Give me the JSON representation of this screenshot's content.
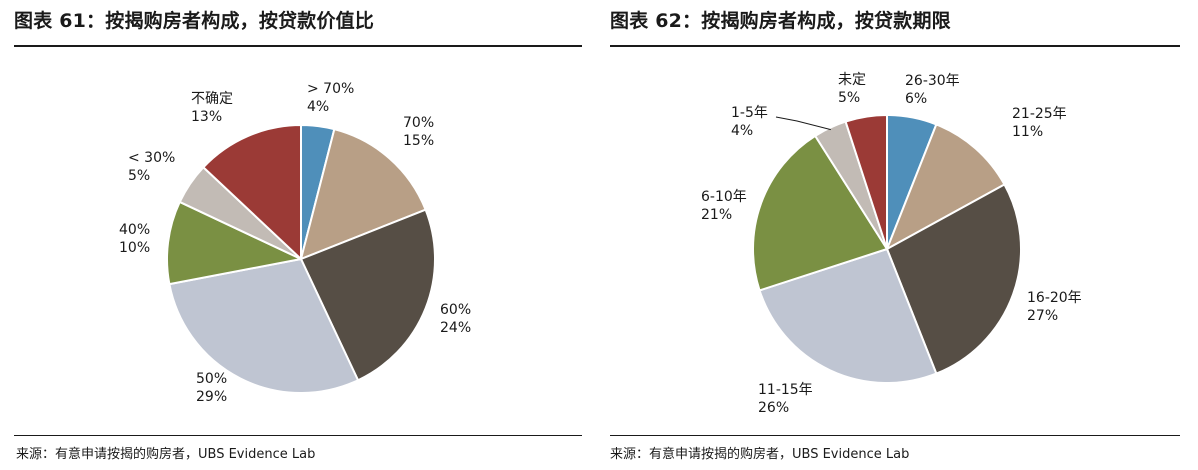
{
  "charts": [
    {
      "title": "图表 61：按揭购房者构成，按贷款价值比",
      "source": "来源：有意申请按揭的购房者，UBS Evidence Lab"
    },
    {
      "title": "图表 62：按揭购房者构成，按贷款期限",
      "source": "来源：有意申请按揭的购房者，UBS Evidence Lab"
    }
  ],
  "chart_data": [
    {
      "type": "pie",
      "title": "图表 61：按揭购房者构成，按贷款价值比",
      "slices": [
        {
          "label": "> 70%",
          "value": 4,
          "value_label": "4%",
          "color": "#4f8fba"
        },
        {
          "label": "70%",
          "value": 15,
          "value_label": "15%",
          "color": "#b89f86"
        },
        {
          "label": "60%",
          "value": 24,
          "value_label": "24%",
          "color": "#564e45"
        },
        {
          "label": "50%",
          "value": 29,
          "value_label": "29%",
          "color": "#bfc5d2"
        },
        {
          "label": "40%",
          "value": 10,
          "value_label": "10%",
          "color": "#7a9043"
        },
        {
          "label": "< 30%",
          "value": 5,
          "value_label": "5%",
          "color": "#c2bbb5"
        },
        {
          "label": "不确定",
          "value": 13,
          "value_label": "13%",
          "color": "#9b3a36"
        }
      ]
    },
    {
      "type": "pie",
      "title": "图表 62：按揭购房者构成，按贷款期限",
      "slices": [
        {
          "label": "26-30年",
          "value": 6,
          "value_label": "6%",
          "color": "#4f8fba"
        },
        {
          "label": "21-25年",
          "value": 11,
          "value_label": "11%",
          "color": "#b89f86"
        },
        {
          "label": "16-20年",
          "value": 27,
          "value_label": "27%",
          "color": "#564e45"
        },
        {
          "label": "11-15年",
          "value": 26,
          "value_label": "26%",
          "color": "#bfc5d2"
        },
        {
          "label": "6-10年",
          "value": 21,
          "value_label": "21%",
          "color": "#7a9043"
        },
        {
          "label": "1-5年",
          "value": 4,
          "value_label": "4%",
          "color": "#c2bbb5"
        },
        {
          "label": "未定",
          "value": 5,
          "value_label": "5%",
          "color": "#9b3a36"
        }
      ]
    }
  ]
}
